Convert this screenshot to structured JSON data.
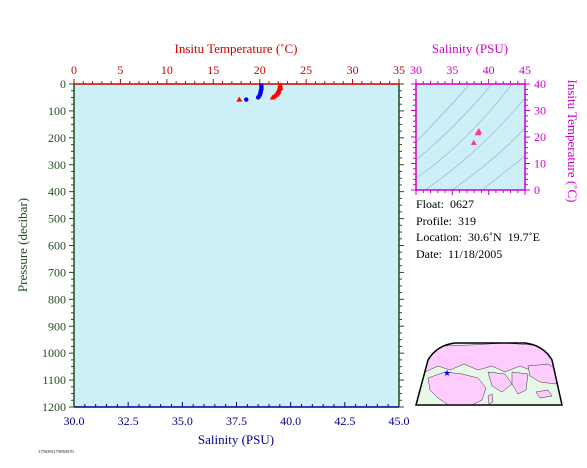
{
  "colors": {
    "plot_bg": "#cdeff8",
    "temperature_axis": "#cc0000",
    "salinity_axis": "#00008b",
    "pressure_axis": "#1f4f1f",
    "inset_axis": "#cc00cc",
    "temp_points": "#ff0000",
    "sal_points": "#0000ff",
    "ts_points": "#ff3399",
    "map_land": "#ffccff",
    "map_sea": "#e8f8e8"
  },
  "info": {
    "float": "Float:  0627",
    "profile": "Profile:  319",
    "location": "Location:  30.6˚N  19.7˚E",
    "date": "Date:  11/18/2005"
  },
  "footer_code": "1750391175950570",
  "map": {
    "marker_icon": "star-icon",
    "land_color": "#ffccff",
    "sea_color": "#e8f8e8"
  },
  "chart_data": [
    {
      "type": "scatter",
      "title": "",
      "top_axis": {
        "label": "Insitu Temperature (˚C)",
        "range": [
          0,
          35
        ],
        "ticks": [
          "0",
          "5",
          "10",
          "15",
          "20",
          "25",
          "30",
          "35"
        ]
      },
      "bottom_axis": {
        "label": "Salinity (PSU)",
        "range": [
          30,
          45
        ],
        "ticks": [
          "30.0",
          "32.5",
          "35.0",
          "37.5",
          "40.0",
          "42.5",
          "45.0"
        ]
      },
      "left_axis": {
        "label": "Pressure (decibar)",
        "range": [
          0,
          1200
        ],
        "inverted": true,
        "ticks": [
          "0",
          "100",
          "200",
          "300",
          "400",
          "500",
          "600",
          "700",
          "800",
          "900",
          "1000",
          "1100",
          "1200"
        ]
      },
      "grid": false,
      "series": [
        {
          "kind": "temperature",
          "marker": "triangle",
          "points": [
            {
              "x": 22.2,
              "y": 5
            },
            {
              "x": 22.2,
              "y": 10
            },
            {
              "x": 22.2,
              "y": 15
            },
            {
              "x": 22.1,
              "y": 20
            },
            {
              "x": 22.0,
              "y": 25
            },
            {
              "x": 22.0,
              "y": 30
            },
            {
              "x": 21.9,
              "y": 35
            },
            {
              "x": 21.8,
              "y": 40
            },
            {
              "x": 21.6,
              "y": 45
            },
            {
              "x": 21.4,
              "y": 50
            },
            {
              "x": 17.8,
              "y": 58
            }
          ]
        },
        {
          "kind": "salinity",
          "marker": "circle",
          "points": [
            {
              "x": 38.65,
              "y": 5
            },
            {
              "x": 38.65,
              "y": 10
            },
            {
              "x": 38.65,
              "y": 15
            },
            {
              "x": 38.65,
              "y": 20
            },
            {
              "x": 38.62,
              "y": 25
            },
            {
              "x": 38.62,
              "y": 30
            },
            {
              "x": 38.6,
              "y": 35
            },
            {
              "x": 38.58,
              "y": 40
            },
            {
              "x": 38.55,
              "y": 45
            },
            {
              "x": 38.5,
              "y": 50
            },
            {
              "x": 37.95,
              "y": 58
            }
          ]
        }
      ]
    },
    {
      "type": "scatter",
      "title": "",
      "top_axis": {
        "label": "Salinity (PSU)",
        "range": [
          30,
          45
        ],
        "ticks": [
          "30",
          "35",
          "40",
          "45"
        ]
      },
      "right_axis": {
        "label": "Insitu Temperature (˚C)",
        "range": [
          0,
          40
        ],
        "ticks": [
          "0",
          "10",
          "20",
          "30",
          "40"
        ]
      },
      "background_contours": true,
      "series": [
        {
          "kind": "ts",
          "marker": "triangle",
          "points": [
            {
              "x": 38.65,
              "y": 22.2
            },
            {
              "x": 38.62,
              "y": 22.0
            },
            {
              "x": 38.55,
              "y": 21.6
            },
            {
              "x": 38.5,
              "y": 21.4
            },
            {
              "x": 37.95,
              "y": 17.8
            }
          ]
        }
      ]
    }
  ]
}
